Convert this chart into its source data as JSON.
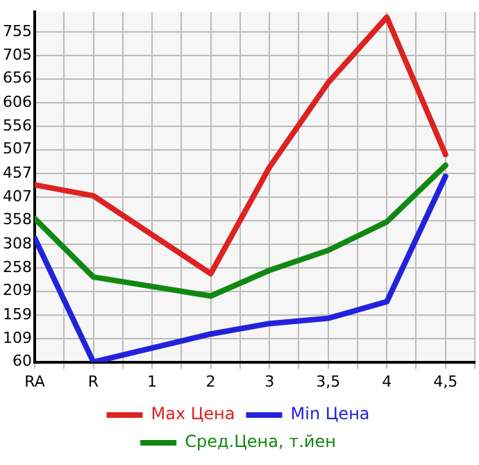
{
  "chart_data": {
    "type": "line",
    "categories": [
      "RA",
      "R",
      "1",
      "2",
      "3",
      "3,5",
      "4",
      "4,5"
    ],
    "series": [
      {
        "name": "Max Цена",
        "color": "#dd2222",
        "values": [
          433,
          410,
          null,
          246,
          470,
          648,
          786,
          497
        ]
      },
      {
        "name": "Min Цена",
        "color": "#2222dd",
        "values": [
          321,
          60,
          null,
          119,
          141,
          152,
          187,
          451
        ]
      },
      {
        "name": "Сред.Цена, т.йен",
        "color": "#118811",
        "values": [
          362,
          239,
          null,
          199,
          253,
          295,
          355,
          474
        ]
      }
    ],
    "ylim": [
      60,
      797
    ],
    "yticks": [
      60,
      109,
      159,
      209,
      258,
      308,
      358,
      407,
      457,
      507,
      556,
      606,
      656,
      705,
      755
    ],
    "grid": true,
    "legend": "bottom",
    "marker": "none",
    "line_style": "solid"
  }
}
